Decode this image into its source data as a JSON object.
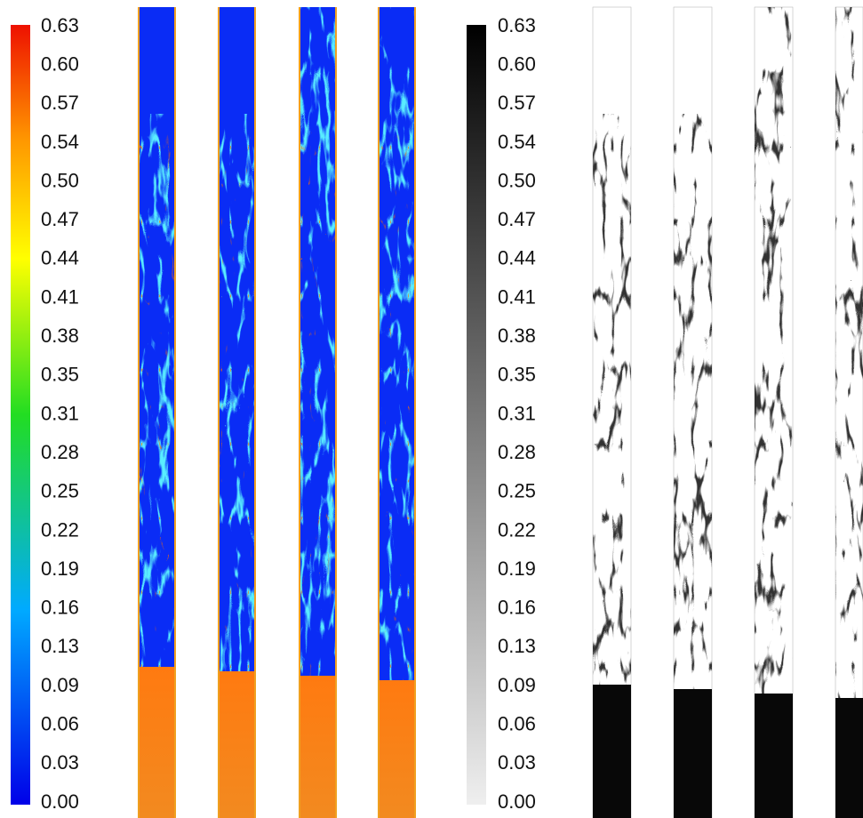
{
  "colorbars": [
    {
      "tick_labels": [
        "0.63",
        "0.60",
        "0.57",
        "0.54",
        "0.50",
        "0.47",
        "0.44",
        "0.41",
        "0.38",
        "0.35",
        "0.31",
        "0.28",
        "0.25",
        "0.22",
        "0.19",
        "0.16",
        "0.13",
        "0.09",
        "0.06",
        "0.03",
        "0.00"
      ]
    },
    {
      "tick_labels": [
        "0.63",
        "0.60",
        "0.57",
        "0.54",
        "0.50",
        "0.47",
        "0.44",
        "0.41",
        "0.38",
        "0.35",
        "0.31",
        "0.28",
        "0.25",
        "0.22",
        "0.19",
        "0.16",
        "0.13",
        "0.09",
        "0.06",
        "0.03",
        "0.00"
      ]
    }
  ]
}
